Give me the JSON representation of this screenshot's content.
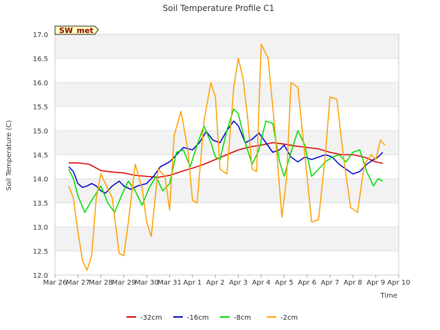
{
  "chart_data": {
    "type": "line",
    "title": "Soil Temperature Profile C1",
    "xlabel": "Time",
    "ylabel": "Soil Temperature (C)",
    "site_badge": "SW_met",
    "ylim": [
      12.0,
      17.0
    ],
    "xlim": [
      0,
      15
    ],
    "y_ticks": [
      "12.0",
      "12.5",
      "13.0",
      "13.5",
      "14.0",
      "14.5",
      "15.0",
      "15.5",
      "16.0",
      "16.5",
      "17.0"
    ],
    "x_ticks": [
      "Mar 26",
      "Mar 27",
      "Mar 28",
      "Mar 29",
      "Mar 30",
      "Mar 31",
      "Apr 1",
      "Apr 2",
      "Apr 3",
      "Apr 4",
      "Apr 5",
      "Apr 6",
      "Apr 7",
      "Apr 8",
      "Apr 9",
      "Apr 10"
    ],
    "grid": true,
    "legend_position": "bottom",
    "series": [
      {
        "name": "-32cm",
        "color": "#dd0000",
        "x": [
          0.6,
          1.0,
          1.5,
          2.0,
          2.5,
          3.0,
          3.5,
          4.0,
          4.5,
          5.0,
          5.5,
          6.0,
          6.5,
          7.0,
          7.5,
          8.0,
          8.5,
          9.0,
          9.5,
          10.0,
          10.5,
          11.0,
          11.5,
          12.0,
          12.5,
          13.0,
          13.5,
          14.0,
          14.3
        ],
        "y": [
          14.33,
          14.33,
          14.3,
          14.17,
          14.14,
          14.12,
          14.07,
          14.05,
          14.03,
          14.07,
          14.15,
          14.22,
          14.3,
          14.4,
          14.5,
          14.6,
          14.66,
          14.7,
          14.75,
          14.72,
          14.68,
          14.65,
          14.62,
          14.55,
          14.5,
          14.5,
          14.45,
          14.35,
          14.32
        ]
      },
      {
        "name": "-16cm",
        "color": "#0000cc",
        "x": [
          0.6,
          0.8,
          1.0,
          1.2,
          1.4,
          1.6,
          1.8,
          2.0,
          2.2,
          2.5,
          2.8,
          3.0,
          3.3,
          3.6,
          4.0,
          4.3,
          4.6,
          5.0,
          5.3,
          5.6,
          6.0,
          6.3,
          6.6,
          6.9,
          7.2,
          7.5,
          7.8,
          8.0,
          8.3,
          8.6,
          8.9,
          9.2,
          9.5,
          9.8,
          10.0,
          10.3,
          10.6,
          10.9,
          11.2,
          11.5,
          11.8,
          12.1,
          12.4,
          12.7,
          13.0,
          13.3,
          13.6,
          13.9,
          14.1,
          14.3
        ],
        "y": [
          14.25,
          14.15,
          13.9,
          13.82,
          13.85,
          13.9,
          13.85,
          13.75,
          13.7,
          13.85,
          13.95,
          13.85,
          13.78,
          13.85,
          13.9,
          14.05,
          14.25,
          14.35,
          14.5,
          14.65,
          14.6,
          14.75,
          14.98,
          14.8,
          14.75,
          15.0,
          15.2,
          15.1,
          14.75,
          14.82,
          14.95,
          14.75,
          14.55,
          14.6,
          14.7,
          14.45,
          14.35,
          14.45,
          14.4,
          14.45,
          14.5,
          14.45,
          14.3,
          14.2,
          14.1,
          14.15,
          14.3,
          14.4,
          14.45,
          14.55
        ]
      },
      {
        "name": "-8cm",
        "color": "#00dd00",
        "x": [
          0.6,
          0.8,
          1.0,
          1.3,
          1.6,
          2.0,
          2.3,
          2.6,
          2.9,
          3.2,
          3.5,
          3.8,
          4.1,
          4.4,
          4.7,
          5.0,
          5.3,
          5.6,
          5.9,
          6.2,
          6.5,
          6.8,
          7.0,
          7.2,
          7.5,
          7.8,
          8.0,
          8.3,
          8.6,
          8.9,
          9.2,
          9.5,
          9.8,
          10.0,
          10.3,
          10.6,
          10.9,
          11.2,
          11.5,
          11.8,
          12.1,
          12.4,
          12.7,
          13.0,
          13.3,
          13.6,
          13.9,
          14.1,
          14.3
        ],
        "y": [
          14.2,
          14.0,
          13.65,
          13.3,
          13.55,
          13.85,
          13.5,
          13.3,
          13.65,
          13.95,
          13.75,
          13.45,
          13.8,
          14.05,
          13.75,
          13.9,
          14.55,
          14.6,
          14.25,
          14.7,
          15.1,
          14.75,
          14.45,
          14.4,
          15.0,
          15.45,
          15.35,
          14.75,
          14.3,
          14.6,
          15.2,
          15.15,
          14.35,
          14.05,
          14.55,
          15.0,
          14.7,
          14.05,
          14.2,
          14.35,
          14.45,
          14.5,
          14.35,
          14.55,
          14.6,
          14.15,
          13.85,
          14.0,
          13.95
        ]
      },
      {
        "name": "-2cm",
        "color": "#ffa000",
        "x": [
          0.6,
          0.8,
          1.0,
          1.2,
          1.4,
          1.6,
          1.8,
          2.0,
          2.2,
          2.5,
          2.8,
          3.0,
          3.2,
          3.5,
          3.8,
          4.0,
          4.2,
          4.5,
          4.8,
          5.0,
          5.2,
          5.5,
          5.8,
          6.0,
          6.2,
          6.5,
          6.8,
          7.0,
          7.2,
          7.5,
          7.8,
          8.0,
          8.2,
          8.4,
          8.6,
          8.8,
          9.0,
          9.3,
          9.6,
          9.9,
          10.1,
          10.3,
          10.6,
          10.9,
          11.2,
          11.5,
          11.8,
          12.0,
          12.3,
          12.6,
          12.9,
          13.2,
          13.5,
          13.8,
          14.0,
          14.2,
          14.4
        ],
        "y": [
          13.85,
          13.6,
          12.9,
          12.3,
          12.1,
          12.4,
          13.6,
          14.1,
          13.9,
          13.6,
          12.45,
          12.4,
          13.1,
          14.3,
          13.8,
          13.1,
          12.8,
          14.2,
          14.05,
          13.35,
          14.9,
          15.4,
          14.6,
          13.55,
          13.5,
          15.2,
          16.0,
          15.7,
          14.2,
          14.1,
          15.9,
          16.5,
          16.1,
          15.3,
          14.2,
          14.15,
          16.8,
          16.5,
          15.0,
          13.2,
          14.0,
          16.0,
          15.9,
          14.5,
          13.1,
          13.15,
          14.5,
          15.7,
          15.65,
          14.4,
          13.4,
          13.3,
          14.3,
          14.5,
          14.4,
          14.8,
          14.7
        ]
      }
    ]
  }
}
